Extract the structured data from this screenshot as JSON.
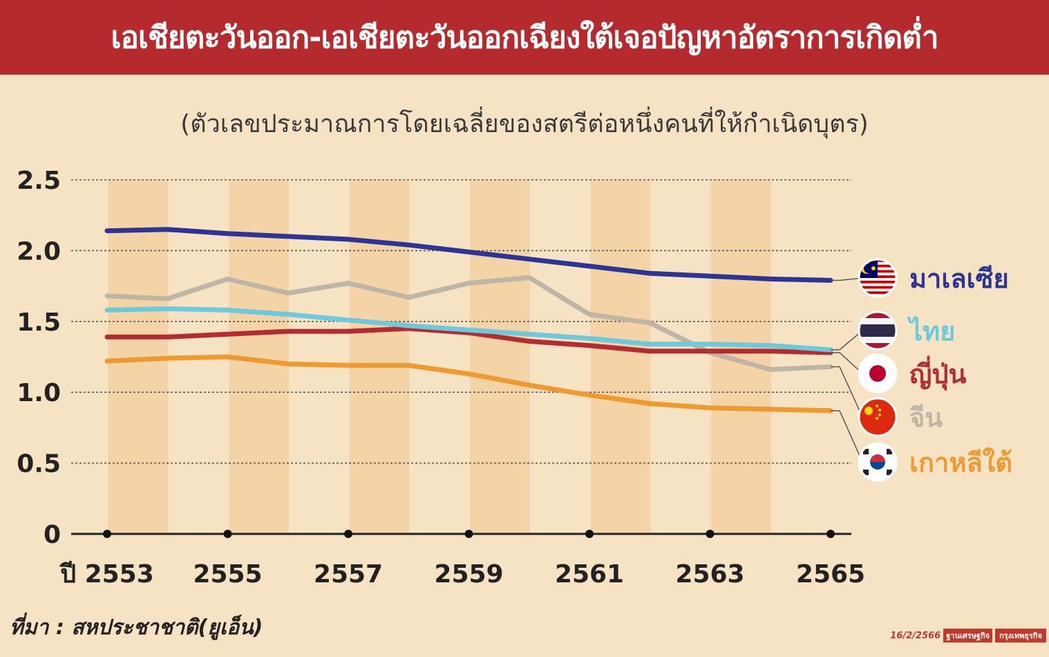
{
  "header": {
    "title": "เอเชียตะวันออก-เอเชียตะวันออกเฉียงใต้เจอปัญหาอัตราการเกิดต่ำ"
  },
  "subtitle": "(ตัวเลขประมาณการโดยเฉลี่ยของสตรีต่อหนึ่งคนที่ให้กำเนิดบุตร)",
  "source": "ที่มา : สหประชาชาติ(ยูเอ็น)",
  "credit": {
    "date": "16/2/2566",
    "publisher_a": "ฐานเศรษฐกิจ",
    "publisher_b": "กรุงเทพธุรกิจ"
  },
  "chart_data": {
    "type": "line",
    "x": [
      2553,
      2554,
      2555,
      2556,
      2557,
      2558,
      2559,
      2560,
      2561,
      2562,
      2563,
      2564,
      2565
    ],
    "x_tick_labels": [
      "ปี 2553",
      "2555",
      "2557",
      "2559",
      "2561",
      "2563",
      "2565"
    ],
    "x_tick_values": [
      2553,
      2555,
      2557,
      2559,
      2561,
      2563,
      2565
    ],
    "y_ticks": [
      "0",
      "0.5",
      "1.0",
      "1.5",
      "2.0",
      "2.5"
    ],
    "ylim": [
      0,
      2.5
    ],
    "grid": "horizontal-dotted",
    "legend_placement": "right",
    "series": [
      {
        "name": "มาเลเซีย",
        "color": "#2c3593",
        "flag": "malaysia-flag-icon",
        "values": [
          2.14,
          2.15,
          2.12,
          2.1,
          2.08,
          2.04,
          1.99,
          1.94,
          1.89,
          1.84,
          1.82,
          1.8,
          1.79
        ]
      },
      {
        "name": "ไทย",
        "color": "#6fc9dd",
        "flag": "thailand-flag-icon",
        "values": [
          1.58,
          1.59,
          1.58,
          1.55,
          1.51,
          1.47,
          1.44,
          1.41,
          1.38,
          1.34,
          1.34,
          1.33,
          1.3
        ]
      },
      {
        "name": "ญี่ปุ่น",
        "color": "#b32d30",
        "flag": "japan-flag-icon",
        "values": [
          1.39,
          1.39,
          1.41,
          1.43,
          1.43,
          1.45,
          1.42,
          1.36,
          1.33,
          1.29,
          1.29,
          1.29,
          1.28
        ]
      },
      {
        "name": "จีน",
        "color": "#bfb5a6",
        "flag": "china-flag-icon",
        "values": [
          1.68,
          1.66,
          1.8,
          1.7,
          1.77,
          1.67,
          1.77,
          1.81,
          1.55,
          1.49,
          1.28,
          1.16,
          1.18
        ]
      },
      {
        "name": "เกาหลีใต้",
        "color": "#ef9a30",
        "flag": "south-korea-flag-icon",
        "values": [
          1.22,
          1.24,
          1.25,
          1.2,
          1.19,
          1.19,
          1.13,
          1.05,
          0.98,
          0.92,
          0.89,
          0.88,
          0.87
        ]
      }
    ]
  }
}
